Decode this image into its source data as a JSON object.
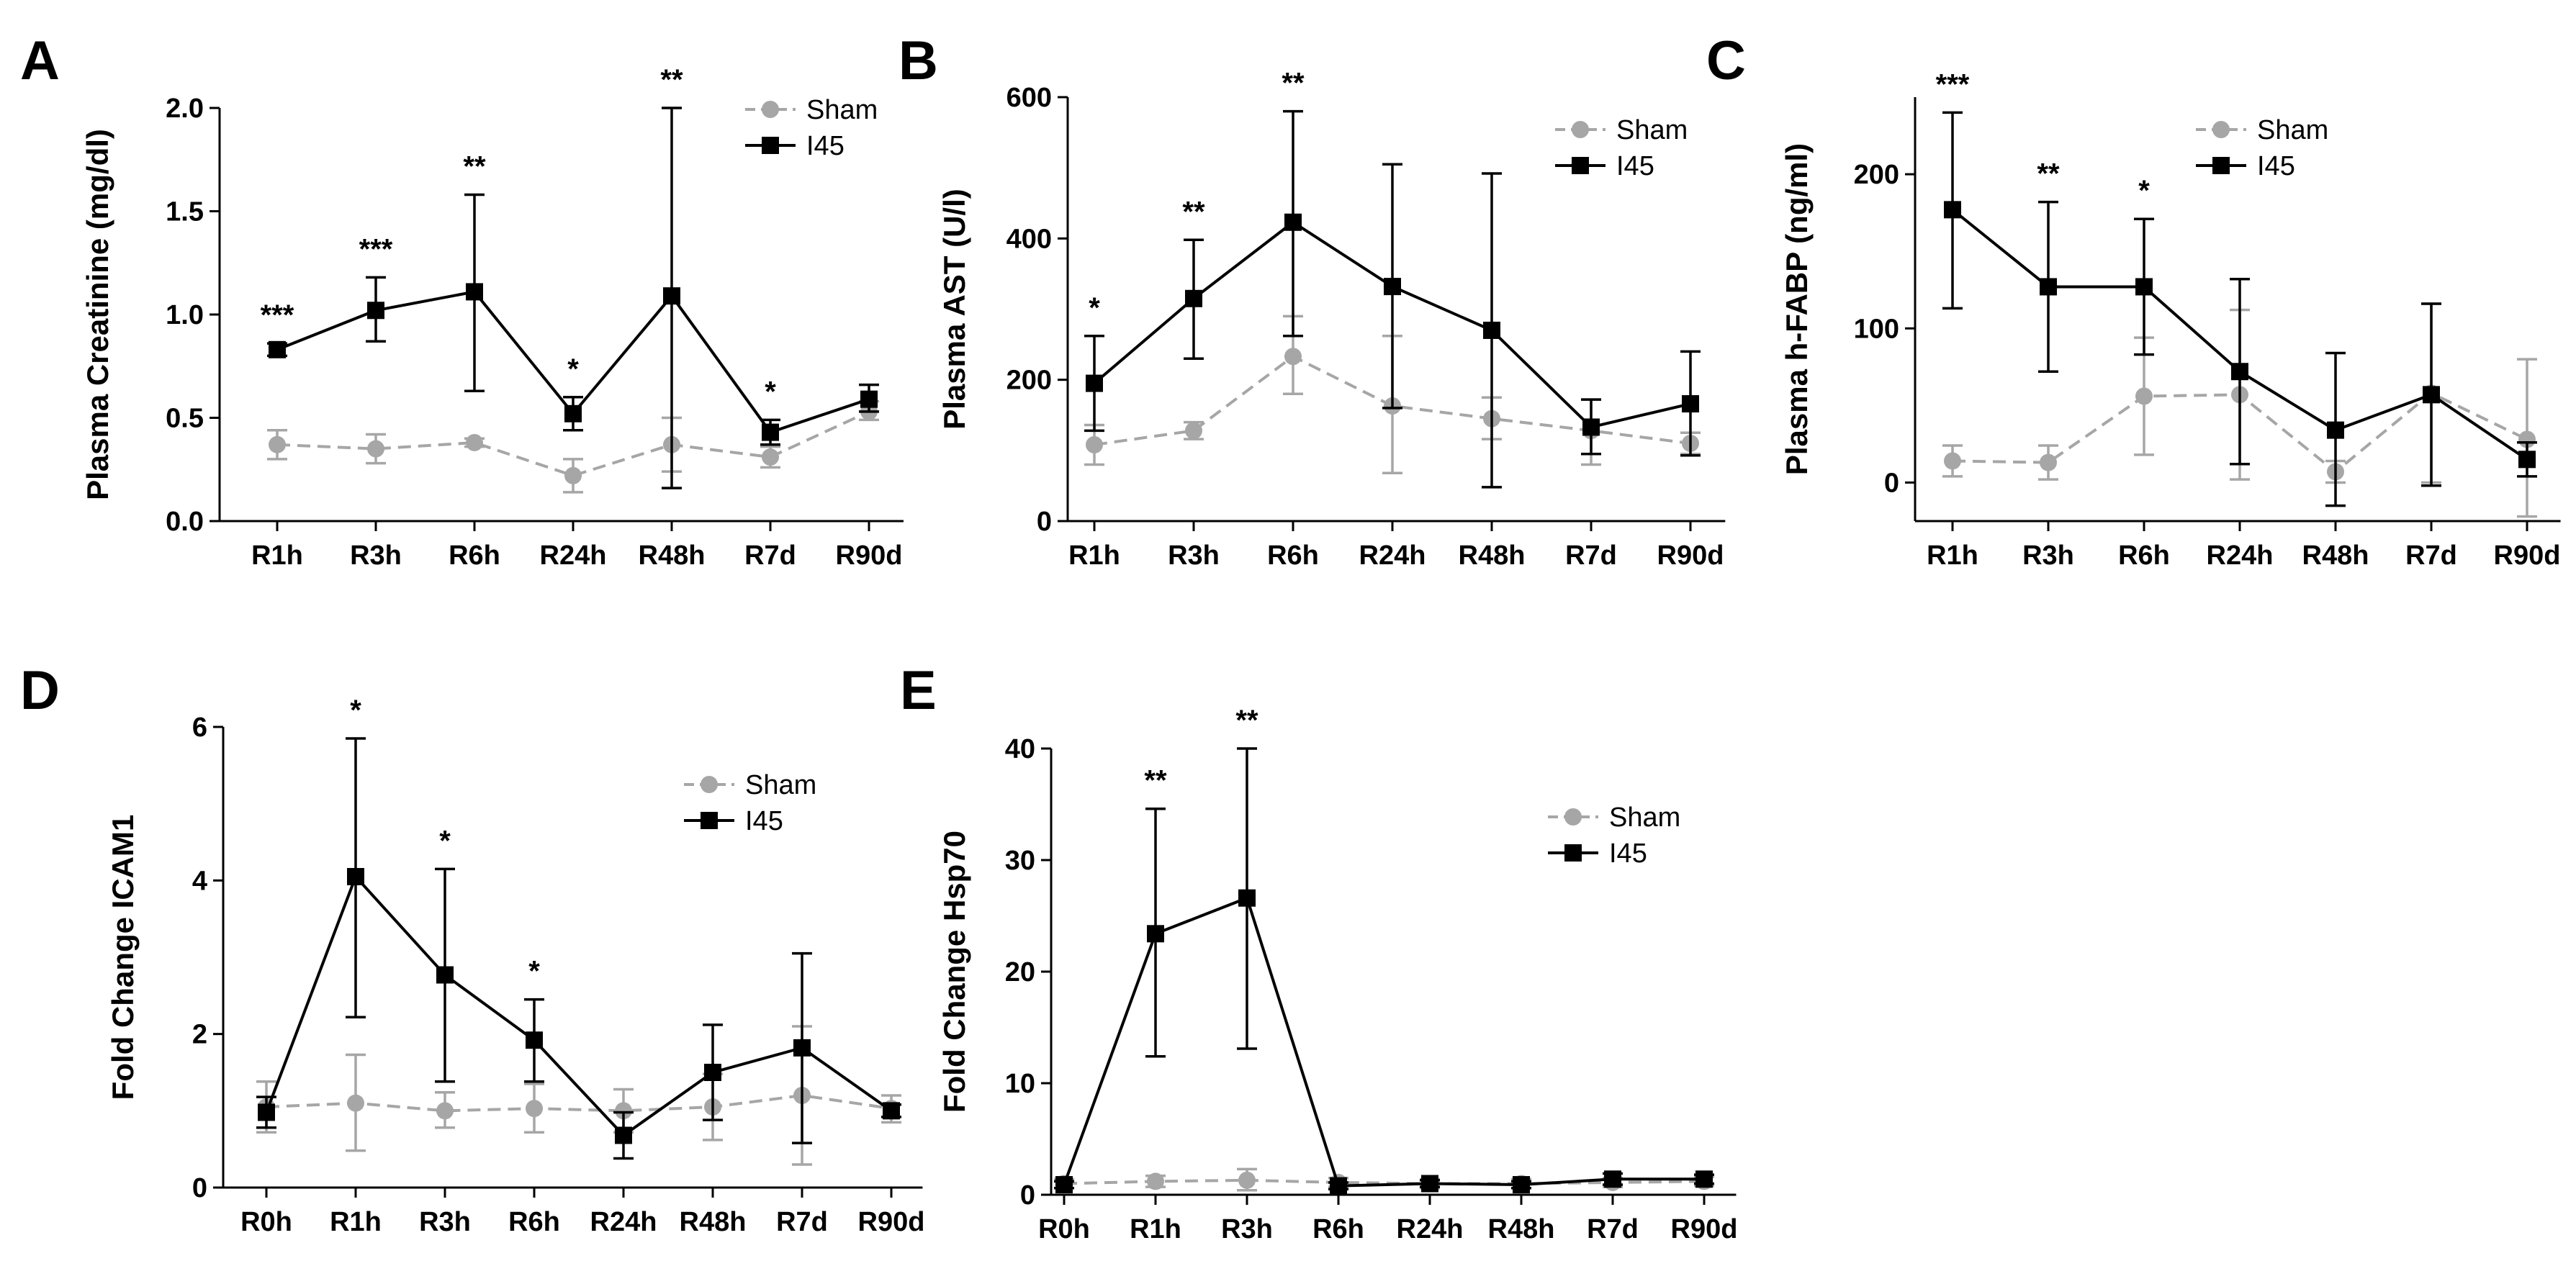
{
  "figure": {
    "panels": [
      "A",
      "B",
      "C",
      "D",
      "E"
    ]
  },
  "chart_data": [
    {
      "panel": "A",
      "type": "line",
      "ylabel": "Plasma Creatinine (mg/dl)",
      "categories": [
        "R1h",
        "R3h",
        "R6h",
        "R24h",
        "R48h",
        "R7d",
        "R90d"
      ],
      "ylim": [
        0,
        2.0
      ],
      "yticks": [
        "0.0",
        "0.5",
        "1.0",
        "1.5",
        "2.0"
      ],
      "ytick_values": [
        0,
        0.5,
        1.0,
        1.5,
        2.0
      ],
      "legend": "top-right",
      "series": [
        {
          "name": "Sham",
          "color": "#a6a6a6",
          "style": "dashed",
          "marker": "circle",
          "values": [
            0.37,
            0.35,
            0.38,
            0.22,
            0.37,
            0.31,
            0.53
          ],
          "err_low": [
            0.3,
            0.28,
            0.36,
            0.14,
            0.24,
            0.26,
            0.49
          ],
          "err_high": [
            0.44,
            0.42,
            0.4,
            0.3,
            0.5,
            0.36,
            0.58
          ]
        },
        {
          "name": "I45",
          "color": "#000000",
          "style": "solid",
          "marker": "square",
          "values": [
            0.83,
            1.02,
            1.11,
            0.52,
            1.09,
            0.43,
            0.59
          ],
          "err_low": [
            0.8,
            0.87,
            0.63,
            0.44,
            0.16,
            0.37,
            0.53
          ],
          "err_high": [
            0.86,
            1.18,
            1.58,
            0.6,
            2.0,
            0.49,
            0.66
          ]
        }
      ],
      "significance": [
        "***",
        "***",
        "**",
        "*",
        "**",
        "*",
        ""
      ]
    },
    {
      "panel": "B",
      "type": "line",
      "ylabel": "Plasma AST (U/l)",
      "categories": [
        "R1h",
        "R3h",
        "R6h",
        "R24h",
        "R48h",
        "R7d",
        "R90d"
      ],
      "ylim": [
        0,
        600
      ],
      "yticks": [
        "0",
        "200",
        "400",
        "600"
      ],
      "ytick_values": [
        0,
        200,
        400,
        600
      ],
      "legend": "top-right",
      "series": [
        {
          "name": "Sham",
          "color": "#a6a6a6",
          "style": "dashed",
          "marker": "circle",
          "values": [
            108,
            128,
            233,
            163,
            145,
            128,
            110
          ],
          "err_low": [
            80,
            116,
            180,
            68,
            116,
            80,
            95
          ],
          "err_high": [
            136,
            140,
            290,
            262,
            175,
            172,
            125
          ]
        },
        {
          "name": "I45",
          "color": "#000000",
          "style": "solid",
          "marker": "square",
          "values": [
            195,
            315,
            423,
            332,
            270,
            133,
            166
          ],
          "err_low": [
            128,
            230,
            262,
            160,
            48,
            95,
            93
          ],
          "err_high": [
            262,
            398,
            580,
            505,
            492,
            172,
            240
          ]
        }
      ],
      "significance": [
        "*",
        "**",
        "**",
        "",
        "",
        "",
        ""
      ]
    },
    {
      "panel": "C",
      "type": "line",
      "ylabel": "Plasma h-FABP (ng/ml)",
      "categories": [
        "R1h",
        "R3h",
        "R6h",
        "R24h",
        "R48h",
        "R7d",
        "R90d"
      ],
      "ylim": [
        -25,
        250
      ],
      "yticks": [
        "0",
        "100",
        "200"
      ],
      "ytick_values": [
        0,
        100,
        200
      ],
      "legend": "top-right",
      "series": [
        {
          "name": "Sham",
          "color": "#a6a6a6",
          "style": "dashed",
          "marker": "circle",
          "values": [
            14,
            13,
            56,
            57,
            7,
            58,
            28
          ],
          "err_low": [
            4,
            2,
            18,
            2,
            0,
            0,
            -22
          ],
          "err_high": [
            24,
            24,
            94,
            112,
            14,
            116,
            80
          ]
        },
        {
          "name": "I45",
          "color": "#000000",
          "style": "solid",
          "marker": "square",
          "values": [
            177,
            127,
            127,
            72,
            34,
            57,
            15
          ],
          "err_low": [
            113,
            72,
            83,
            12,
            -15,
            -2,
            4
          ],
          "err_high": [
            240,
            182,
            171,
            132,
            84,
            116,
            26
          ]
        }
      ],
      "significance": [
        "***",
        "**",
        "*",
        "",
        "",
        "",
        ""
      ]
    },
    {
      "panel": "D",
      "type": "line",
      "ylabel": "Fold Change ICAM1",
      "categories": [
        "R0h",
        "R1h",
        "R3h",
        "R6h",
        "R24h",
        "R48h",
        "R7d",
        "R90d"
      ],
      "ylim": [
        0,
        6
      ],
      "yticks": [
        "0",
        "2",
        "4",
        "6"
      ],
      "ytick_values": [
        0,
        2,
        4,
        6
      ],
      "legend": "top-right",
      "series": [
        {
          "name": "Sham",
          "color": "#a6a6a6",
          "style": "dashed",
          "marker": "circle",
          "values": [
            1.05,
            1.1,
            1.0,
            1.03,
            1.0,
            1.05,
            1.2,
            1.03
          ],
          "err_low": [
            0.72,
            0.48,
            0.78,
            0.72,
            0.72,
            0.62,
            0.3,
            0.85
          ],
          "err_high": [
            1.38,
            1.73,
            1.24,
            1.35,
            1.28,
            1.48,
            2.1,
            1.2
          ]
        },
        {
          "name": "I45",
          "color": "#000000",
          "style": "solid",
          "marker": "square",
          "values": [
            0.98,
            4.05,
            2.77,
            1.92,
            0.68,
            1.5,
            1.82,
            1.0
          ],
          "err_low": [
            0.78,
            2.22,
            1.38,
            1.38,
            0.38,
            0.88,
            0.58,
            0.92
          ],
          "err_high": [
            1.18,
            5.85,
            4.15,
            2.45,
            0.98,
            2.12,
            3.05,
            1.08
          ]
        }
      ],
      "significance": [
        "",
        "*",
        "*",
        "*",
        "",
        "",
        "",
        ""
      ]
    },
    {
      "panel": "E",
      "type": "line",
      "ylabel": "Fold Change Hsp70",
      "categories": [
        "R0h",
        "R1h",
        "R3h",
        "R6h",
        "R24h",
        "R48h",
        "R7d",
        "R90d"
      ],
      "ylim": [
        0,
        40
      ],
      "yticks": [
        "0",
        "10",
        "20",
        "30",
        "40"
      ],
      "ytick_values": [
        0,
        10,
        20,
        30,
        40
      ],
      "legend": "top-right",
      "series": [
        {
          "name": "Sham",
          "color": "#a6a6a6",
          "style": "dashed",
          "marker": "circle",
          "values": [
            1.0,
            1.2,
            1.3,
            1.1,
            1.0,
            1.0,
            1.1,
            1.2
          ],
          "err_low": [
            0.6,
            0.7,
            0.4,
            0.7,
            0.6,
            0.6,
            0.7,
            0.8
          ],
          "err_high": [
            1.4,
            1.7,
            2.3,
            1.5,
            1.4,
            1.4,
            1.5,
            1.6
          ]
        },
        {
          "name": "I45",
          "color": "#000000",
          "style": "solid",
          "marker": "square",
          "values": [
            0.9,
            23.4,
            26.6,
            0.8,
            1.0,
            0.9,
            1.4,
            1.4
          ],
          "err_low": [
            0.6,
            12.4,
            13.1,
            0.5,
            0.7,
            0.6,
            0.9,
            1.0
          ],
          "err_high": [
            1.2,
            34.6,
            40.0,
            1.1,
            1.3,
            1.2,
            1.9,
            1.8
          ]
        }
      ],
      "significance": [
        "",
        "**",
        "**",
        "",
        "",
        "",
        "",
        ""
      ]
    }
  ]
}
